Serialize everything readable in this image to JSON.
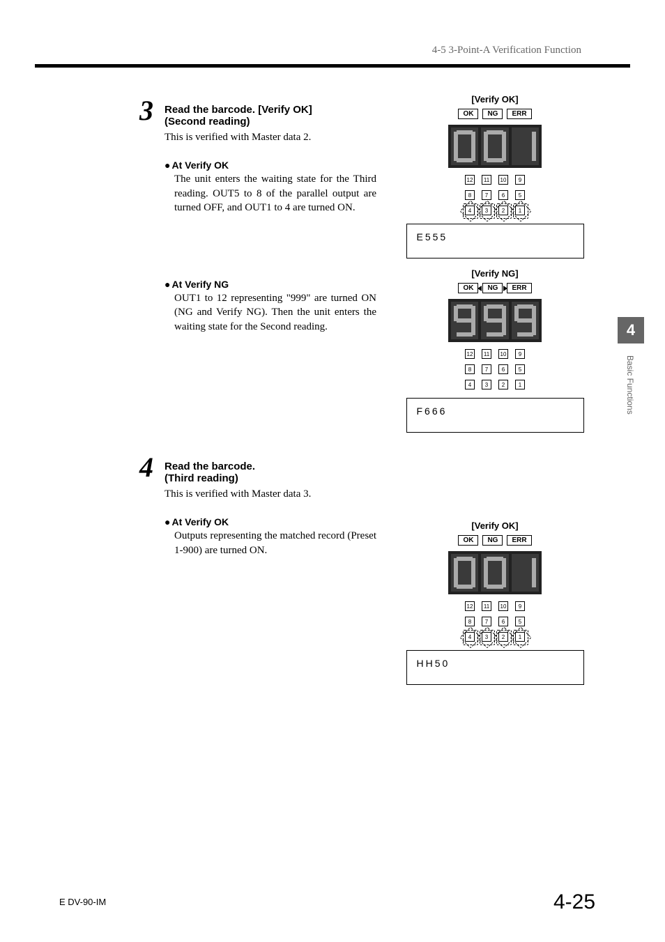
{
  "header": {
    "section": "4-5  3-Point-A Verification Function"
  },
  "side": {
    "chapter": "4",
    "label": "Basic Functions"
  },
  "step3": {
    "num": "3",
    "title": "Read the barcode. [Verify OK]",
    "subtitle": "(Second reading)",
    "desc": "This is verified with Master data 2.",
    "ok": {
      "heading": "At Verify OK",
      "body": "The unit enters the waiting state for the Third reading. OUT5 to 8 of the parallel output are turned OFF, and OUT1 to 4 are turned ON."
    },
    "ng": {
      "heading": "At Verify NG",
      "body": "OUT1 to 12 representing \"999\" are turned ON (NG and Verify NG). Then the unit enters the waiting state for the Second reading."
    }
  },
  "step4": {
    "num": "4",
    "title": "Read the barcode.",
    "subtitle": "(Third reading)",
    "desc": "This is verified with Master data 3.",
    "ok": {
      "heading": "At Verify OK",
      "body": "Outputs representing the matched record (Preset 1-900) are turned ON."
    }
  },
  "panels": {
    "p1": {
      "title": "[Verify OK]",
      "digits": "001",
      "data": "E555",
      "burst_row": 3,
      "ng_active": false
    },
    "p2": {
      "title": "[Verify NG]",
      "digits": "999",
      "data": "F666",
      "burst_row": 0,
      "ng_active": true
    },
    "p3": {
      "title": "[Verify OK]",
      "digits": "001",
      "data": "HH50",
      "burst_row": 3,
      "ng_active": false
    }
  },
  "status_labels": {
    "ok": "OK",
    "ng": "NG",
    "err": "ERR"
  },
  "out_numbers": [
    [
      12,
      11,
      10,
      9
    ],
    [
      8,
      7,
      6,
      5
    ],
    [
      4,
      3,
      2,
      1
    ]
  ],
  "footer": {
    "left": "E DV-90-IM",
    "right": "4-25"
  }
}
